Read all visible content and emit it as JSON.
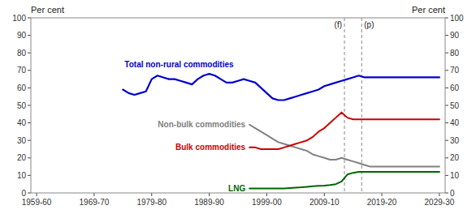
{
  "chart_data": {
    "type": "line",
    "y_label": "Per cent",
    "y2_label": "Per cent",
    "x": [
      1975,
      1976,
      1977,
      1978,
      1979,
      1980,
      1981,
      1982,
      1983,
      1984,
      1985,
      1986,
      1987,
      1988,
      1989,
      1990,
      1991,
      1992,
      1993,
      1994,
      1995,
      1996,
      1997,
      1998,
      1999,
      2000,
      2001,
      2002,
      2003,
      2004,
      2005,
      2006,
      2007,
      2008,
      2009,
      2010,
      2011,
      2012,
      2013,
      2014,
      2015,
      2016,
      2017,
      2018,
      2019,
      2020,
      2021,
      2022,
      2023,
      2024,
      2025,
      2026,
      2027,
      2028,
      2029,
      2030
    ],
    "series": [
      {
        "name": "Total non-rural commodities",
        "color": "#0000cc",
        "values": [
          59,
          57,
          56,
          57,
          58,
          65,
          67,
          66,
          65,
          65,
          64,
          63,
          62,
          65,
          67,
          68,
          67,
          65,
          63,
          63,
          64,
          65,
          64,
          63,
          60,
          57,
          54,
          53,
          53,
          54,
          55,
          56,
          57,
          58,
          59,
          61,
          62,
          63,
          64,
          65,
          66,
          67,
          66,
          66,
          66,
          66,
          66,
          66,
          66,
          66,
          66,
          66,
          66,
          66,
          66,
          66
        ]
      },
      {
        "name": "Non-bulk commodities",
        "color": "#808080",
        "values": [
          null,
          null,
          null,
          null,
          null,
          null,
          null,
          null,
          null,
          null,
          null,
          null,
          null,
          null,
          null,
          null,
          null,
          null,
          null,
          null,
          null,
          null,
          39,
          37,
          35,
          33,
          31,
          29,
          28,
          27,
          26,
          25,
          24,
          22,
          21,
          20,
          19,
          19,
          20,
          19,
          18,
          17,
          16,
          15,
          15,
          15,
          15,
          15,
          15,
          15,
          15,
          15,
          15,
          15,
          15,
          15
        ]
      },
      {
        "name": "Bulk commodities",
        "color": "#cc0000",
        "values": [
          null,
          null,
          null,
          null,
          null,
          null,
          null,
          null,
          null,
          null,
          null,
          null,
          null,
          null,
          null,
          null,
          null,
          null,
          null,
          null,
          null,
          null,
          26,
          26,
          25,
          25,
          25,
          25,
          26,
          27,
          28,
          29,
          30,
          32,
          35,
          37,
          40,
          43,
          46,
          43,
          42,
          42,
          42,
          42,
          42,
          42,
          42,
          42,
          42,
          42,
          42,
          42,
          42,
          42,
          42,
          42
        ]
      },
      {
        "name": "LNG",
        "color": "#006600",
        "values": [
          null,
          null,
          null,
          null,
          null,
          null,
          null,
          null,
          null,
          null,
          null,
          null,
          null,
          null,
          null,
          null,
          null,
          null,
          null,
          null,
          null,
          null,
          2.5,
          2.5,
          2.5,
          2.5,
          2.5,
          2.5,
          2.5,
          2.8,
          3.0,
          3.2,
          3.5,
          3.8,
          4.0,
          4.2,
          4.5,
          5.0,
          6.5,
          10.5,
          11.5,
          12.0,
          12.0,
          12.0,
          12.0,
          12.0,
          12.0,
          12.0,
          12.0,
          12.0,
          12.0,
          12.0,
          12.0,
          12.0,
          12.0,
          12.0
        ]
      }
    ],
    "annotations": [
      {
        "x": 2013.5,
        "text": "(f)"
      },
      {
        "x": 2016.5,
        "text": "(p)"
      }
    ],
    "xlim": [
      1959.0,
      2031.0
    ],
    "xticks": [
      {
        "value": 1960,
        "label": "1959-60"
      },
      {
        "value": 1970,
        "label": "1969-70"
      },
      {
        "value": 1980,
        "label": "1979-80"
      },
      {
        "value": 1990,
        "label": "1989-90"
      },
      {
        "value": 2000,
        "label": "1999-00"
      },
      {
        "value": 2010,
        "label": "2009-10"
      },
      {
        "value": 2020,
        "label": "2019-20"
      },
      {
        "value": 2030,
        "label": "2029-30"
      }
    ],
    "ylim": [
      0,
      100
    ],
    "yticks": [
      0,
      10,
      20,
      30,
      40,
      50,
      60,
      70,
      80,
      90,
      100
    ],
    "y2lim": [
      0,
      100
    ],
    "y2ticks": [
      0,
      10,
      20,
      30,
      40,
      50,
      60,
      70,
      80,
      90,
      100
    ],
    "grid": false
  }
}
